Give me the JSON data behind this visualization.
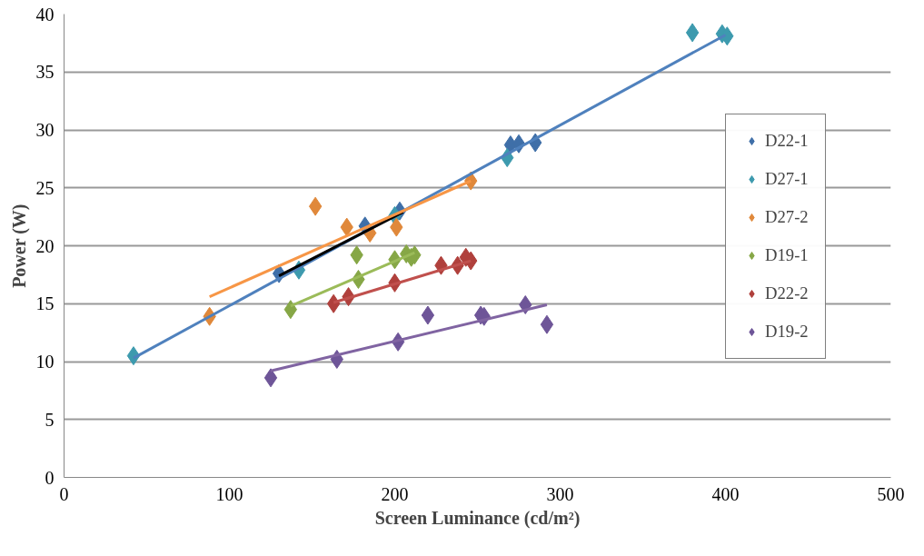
{
  "chart_data": {
    "type": "scatter",
    "xlabel": "Screen Luminance (cd/m²)",
    "ylabel": "Power (W)",
    "xlim": [
      0,
      500
    ],
    "ylim": [
      0,
      40
    ],
    "xticks": [
      0,
      100,
      200,
      300,
      400,
      500
    ],
    "yticks": [
      0,
      5,
      10,
      15,
      20,
      25,
      30,
      35,
      40
    ],
    "grid": "y",
    "legend": "right",
    "series": [
      {
        "name": "D22-1",
        "color": "#3f6fa8",
        "marker": "diamond",
        "x": [
          130,
          182,
          203,
          270,
          275,
          285
        ],
        "values": [
          17.6,
          21.7,
          23.0,
          28.7,
          28.8,
          28.9
        ]
      },
      {
        "name": "D27-1",
        "color": "#3d9aae",
        "marker": "diamond",
        "x": [
          42,
          142,
          200,
          268,
          380,
          398,
          401
        ],
        "values": [
          10.5,
          17.9,
          22.6,
          27.6,
          38.4,
          38.3,
          38.1
        ]
      },
      {
        "name": "D27-2",
        "color": "#e0883a",
        "marker": "diamond",
        "x": [
          88,
          152,
          171,
          185,
          201,
          246
        ],
        "values": [
          13.9,
          23.4,
          21.6,
          21.1,
          21.6,
          25.6
        ]
      },
      {
        "name": "D19-1",
        "color": "#86a746",
        "marker": "diamond",
        "x": [
          137,
          178,
          177,
          200,
          207,
          212,
          210
        ],
        "values": [
          14.5,
          17.1,
          19.2,
          18.8,
          19.3,
          19.2,
          19.0
        ]
      },
      {
        "name": "D22-2",
        "color": "#b0403c",
        "marker": "diamond",
        "x": [
          163,
          172,
          200,
          228,
          238,
          243,
          246
        ],
        "values": [
          15.0,
          15.6,
          16.8,
          18.3,
          18.3,
          19.0,
          18.7
        ]
      },
      {
        "name": "D19-2",
        "color": "#6e5598",
        "marker": "diamond",
        "x": [
          125,
          165,
          202,
          220,
          252,
          254,
          279,
          292
        ],
        "values": [
          8.6,
          10.2,
          11.7,
          14.0,
          14.0,
          13.9,
          14.9,
          13.2
        ]
      },
      {
        "type": "line",
        "color": "#4f81bd",
        "marker": "none",
        "x": [
          42,
          400
        ],
        "values": [
          10.3,
          38.2
        ]
      },
      {
        "type": "line",
        "color": "#000000",
        "marker": "none",
        "x": [
          130,
          205
        ],
        "values": [
          17.4,
          22.9
        ]
      },
      {
        "type": "line",
        "color": "#f79646",
        "marker": "none",
        "x": [
          88,
          246
        ],
        "values": [
          15.6,
          25.6
        ]
      },
      {
        "type": "line",
        "color": "#9bbb59",
        "marker": "none",
        "x": [
          137,
          212
        ],
        "values": [
          14.8,
          19.4
        ]
      },
      {
        "type": "line",
        "color": "#c0504d",
        "marker": "none",
        "x": [
          163,
          246
        ],
        "values": [
          15.1,
          18.7
        ]
      },
      {
        "type": "line",
        "color": "#8064a2",
        "marker": "none",
        "x": [
          125,
          292
        ],
        "values": [
          9.2,
          14.9
        ]
      }
    ]
  }
}
